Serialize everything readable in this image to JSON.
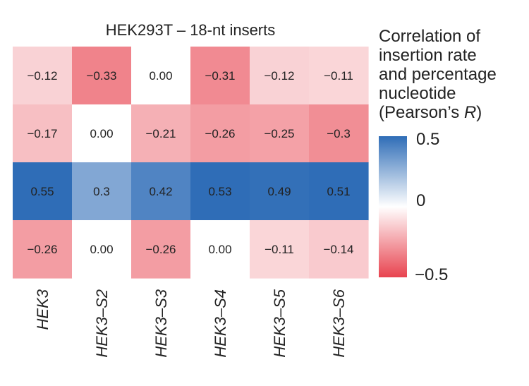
{
  "chart_data": {
    "type": "heatmap",
    "title": "HEK293T – 18-nt inserts",
    "x_categories": [
      "HEK3",
      "HEK3–S2",
      "HEK3–S3",
      "HEK3–S4",
      "HEK3–S5",
      "HEK3–S6"
    ],
    "rows": 4,
    "values": [
      [
        -0.12,
        -0.33,
        0.0,
        -0.31,
        -0.12,
        -0.11
      ],
      [
        -0.17,
        0.0,
        -0.21,
        -0.26,
        -0.25,
        -0.3
      ],
      [
        0.55,
        0.3,
        0.42,
        0.53,
        0.49,
        0.51
      ],
      [
        -0.26,
        0.0,
        -0.26,
        0.0,
        -0.11,
        -0.14
      ]
    ],
    "value_labels": [
      [
        "−0.12",
        "−0.33",
        "0.00",
        "−0.31",
        "−0.12",
        "−0.11"
      ],
      [
        "−0.17",
        "0.00",
        "−0.21",
        "−0.26",
        "−0.25",
        "−0.3"
      ],
      [
        "0.55",
        "0.3",
        "0.42",
        "0.53",
        "0.49",
        "0.51"
      ],
      [
        "−0.26",
        "0.00",
        "−0.26",
        "0.00",
        "−0.11",
        "−0.14"
      ]
    ],
    "colorbar": {
      "title_lines": [
        "Correlation of",
        "insertion rate",
        "and percentage",
        "nucleotide",
        "(Pearson’s ",
        "R",
        ")"
      ],
      "range": [
        -0.5,
        0.5
      ],
      "tick_labels": [
        "0.5",
        "0",
        "−0.5"
      ],
      "low_color": "#e8434f",
      "mid_color": "#ffffff",
      "high_color": "#2f6db7"
    }
  }
}
